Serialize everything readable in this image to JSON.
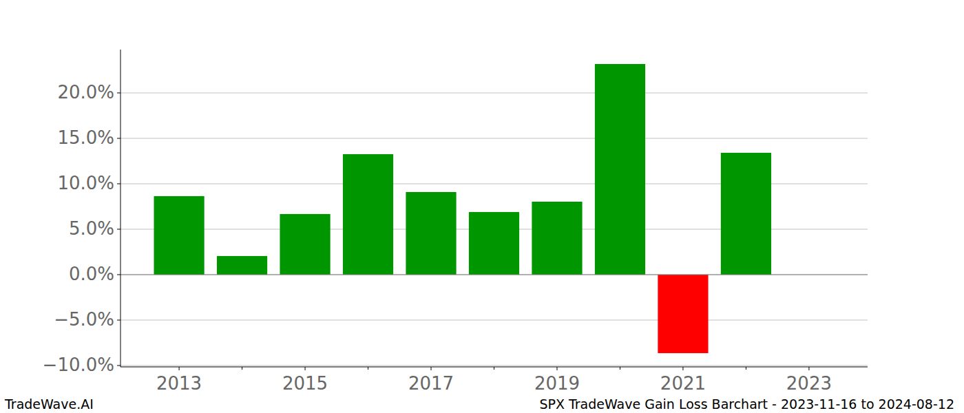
{
  "chart_data": {
    "type": "bar",
    "title": "SPX TradeWave Gain Loss Barchart - 2023-11-16 to 2024-08-12",
    "source": "TradeWave.AI",
    "x": [
      2013,
      2014,
      2015,
      2016,
      2017,
      2018,
      2019,
      2020,
      2021,
      2022
    ],
    "values": [
      8.64,
      2.05,
      6.67,
      13.26,
      9.09,
      6.89,
      8.03,
      23.18,
      -8.64,
      13.41
    ],
    "colors": [
      "#009600",
      "#009600",
      "#009600",
      "#009600",
      "#009600",
      "#009600",
      "#009600",
      "#009600",
      "#ff0000",
      "#009600"
    ],
    "xlim": [
      2012.07,
      2023.93
    ],
    "xticks": [
      2013,
      2015,
      2017,
      2019,
      2021,
      2023
    ],
    "ylim": [
      -10.15,
      24.77
    ],
    "yticks": [
      {
        "value": -10,
        "label": "−10.0%"
      },
      {
        "value": -5,
        "label": "−5.0%"
      },
      {
        "value": 0,
        "label": "0.0%"
      },
      {
        "value": 5,
        "label": "5.0%"
      },
      {
        "value": 10,
        "label": "10.0%"
      },
      {
        "value": 15,
        "label": "15.0%"
      },
      {
        "value": 20,
        "label": "20.0%"
      }
    ],
    "grid": true
  }
}
